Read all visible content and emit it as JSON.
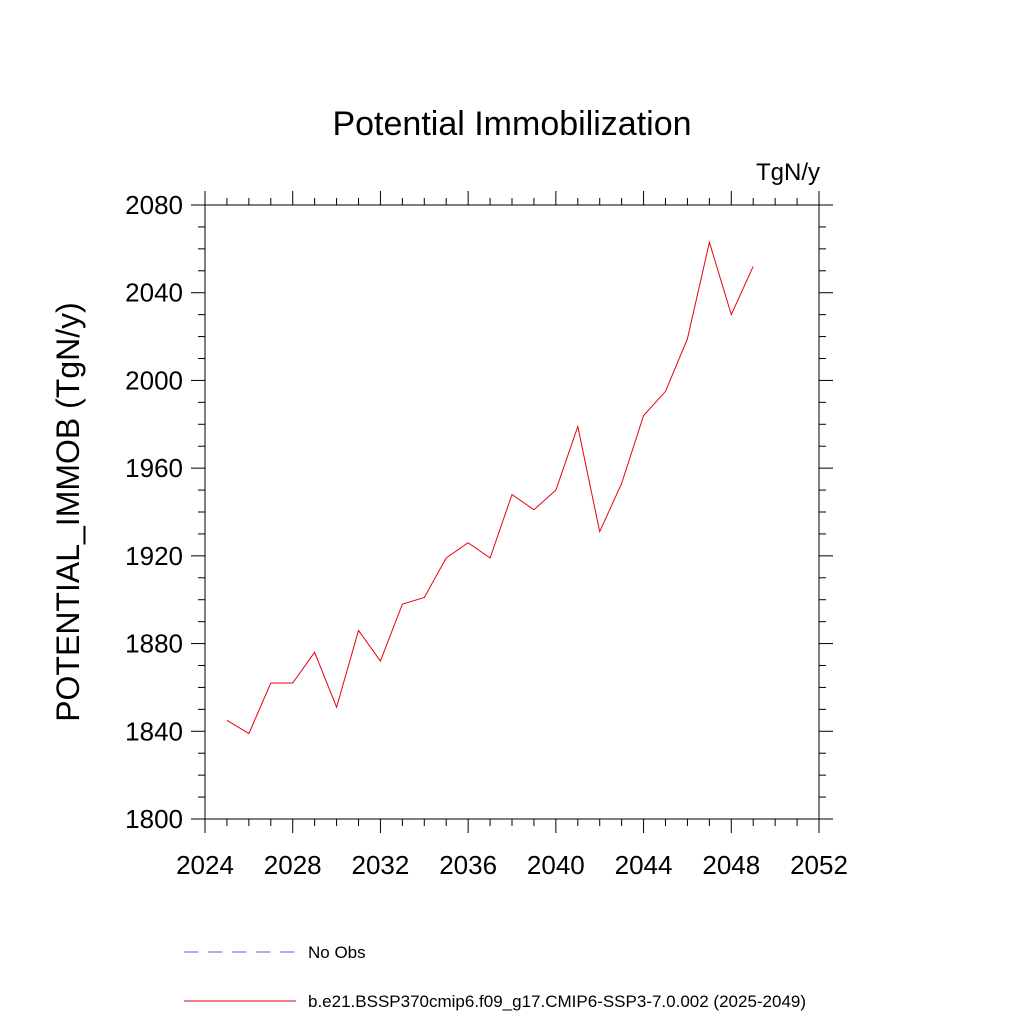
{
  "chart_data": {
    "type": "line",
    "title": "Potential Immobilization",
    "units": "TgN/y",
    "ylabel": "POTENTIAL_IMMOB  (TgN/y)",
    "xlabel": "",
    "xlim": [
      2024,
      2052
    ],
    "ylim": [
      1800,
      2080
    ],
    "x_ticks": [
      2024,
      2028,
      2032,
      2036,
      2040,
      2044,
      2048,
      2052
    ],
    "y_ticks": [
      1800,
      1840,
      1880,
      1920,
      1960,
      2000,
      2040,
      2080
    ],
    "x_tick_labels": [
      "2024",
      "2028",
      "2032",
      "2036",
      "2040",
      "2044",
      "2048",
      "2052"
    ],
    "y_tick_labels": [
      "1800",
      "1840",
      "1880",
      "1920",
      "1960",
      "2000",
      "2040",
      "2080"
    ],
    "grid": false,
    "legend_position": "bottom",
    "series": [
      {
        "name": "b.e21.BSSP370cmip6.f09_g17.CMIP6-SSP3-7.0.002 (2025-2049)",
        "color": "#e8000b",
        "style": "solid",
        "x": [
          2025,
          2026,
          2027,
          2028,
          2029,
          2030,
          2031,
          2032,
          2033,
          2034,
          2035,
          2036,
          2037,
          2038,
          2039,
          2040,
          2041,
          2042,
          2043,
          2044,
          2045,
          2046,
          2047,
          2048,
          2049
        ],
        "y": [
          1845,
          1839,
          1862,
          1862,
          1876,
          1851,
          1886,
          1872,
          1898,
          1901,
          1919,
          1926,
          1919,
          1948,
          1941,
          1950,
          1979,
          1931,
          1953,
          1984,
          1995,
          2019,
          2063,
          2030,
          2052
        ]
      }
    ],
    "legend": [
      {
        "label": "No Obs",
        "color": "#6a5acd",
        "style": "dashed"
      },
      {
        "label": "b.e21.BSSP370cmip6.f09_g17.CMIP6-SSP3-7.0.002 (2025-2049)",
        "color": "#e8000b",
        "style": "solid"
      }
    ]
  }
}
